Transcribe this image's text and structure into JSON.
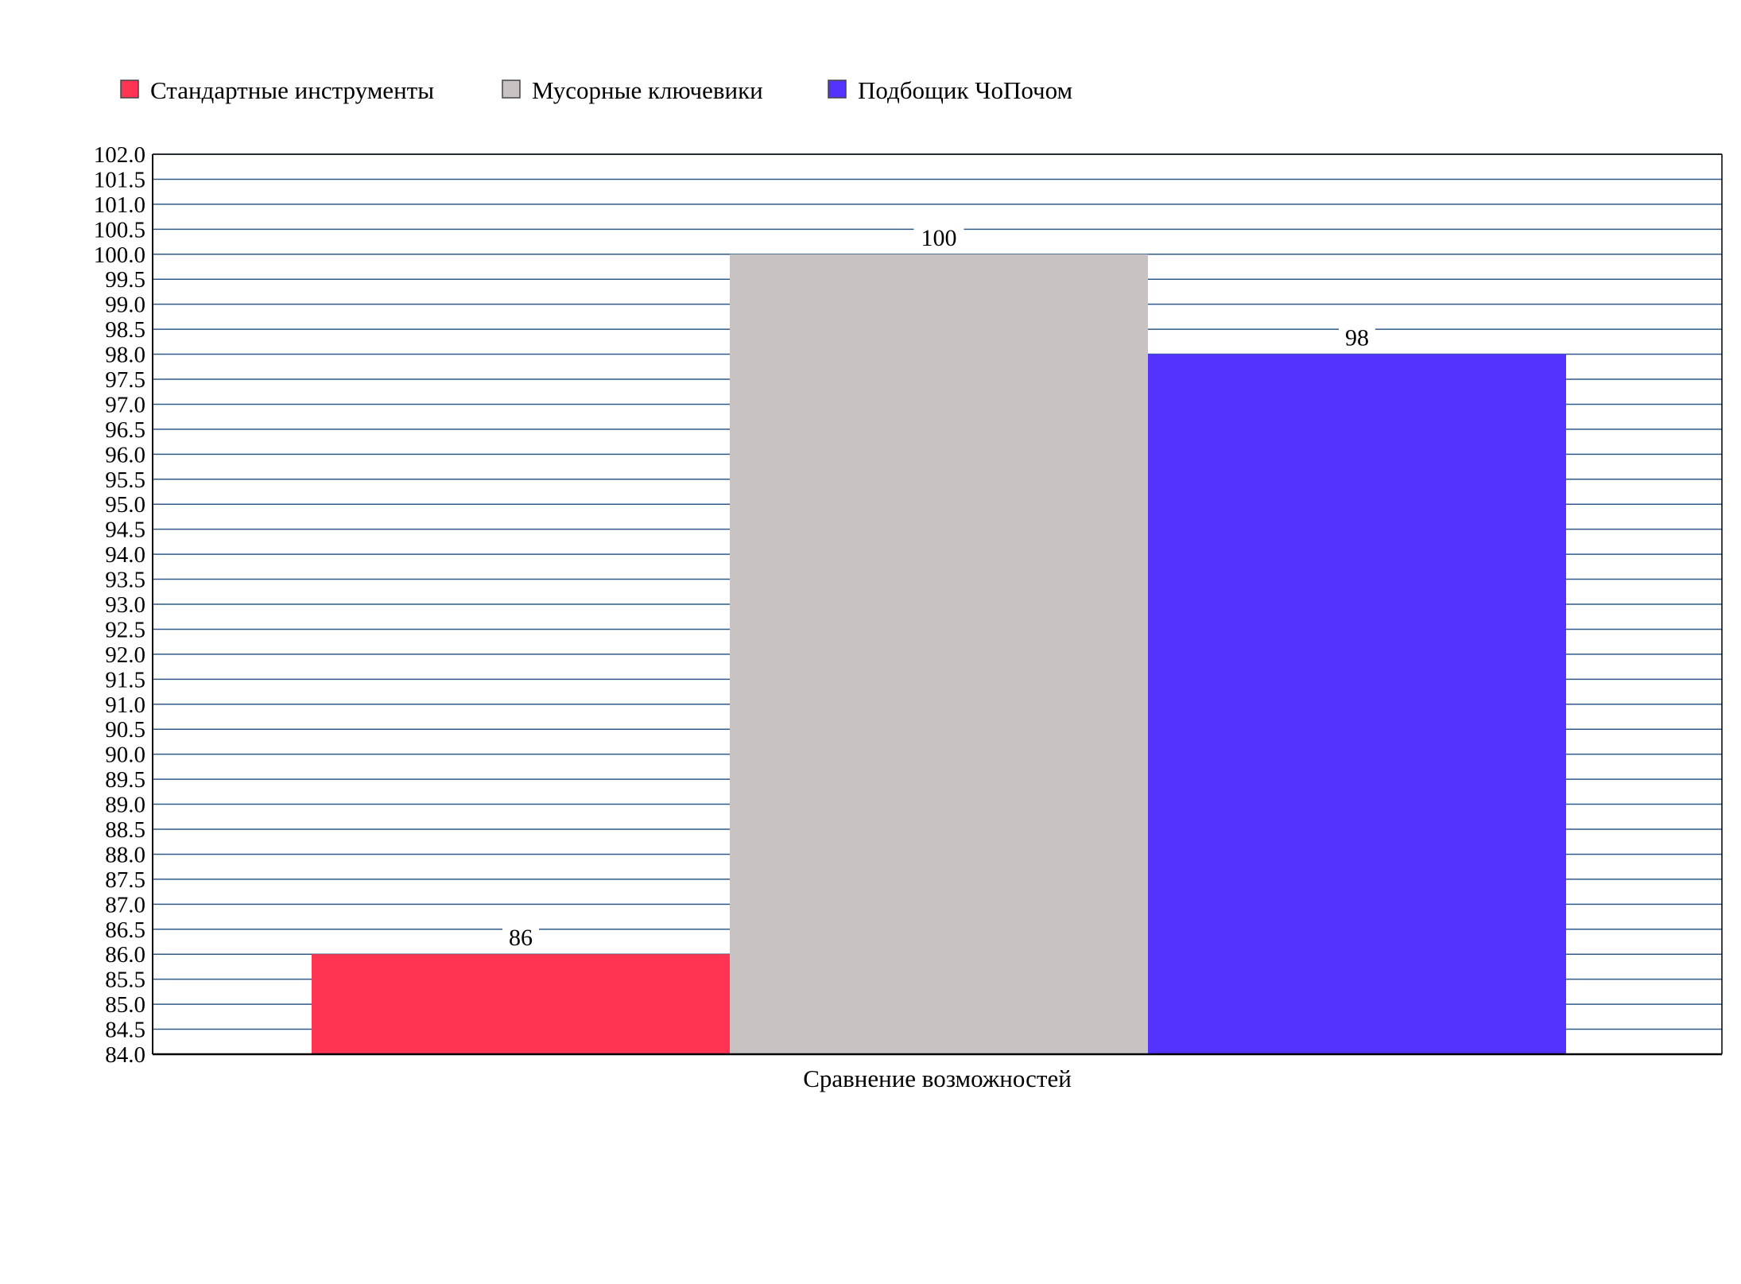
{
  "chart_data": {
    "type": "bar",
    "categories": [
      "Сравнение возможностей"
    ],
    "series": [
      {
        "name": "Стандартные инструменты",
        "values": [
          86
        ],
        "color": "#ff3352"
      },
      {
        "name": "Мусорные ключевики",
        "values": [
          100
        ],
        "color": "#c8c2c2"
      },
      {
        "name": "Подбощик ЧоПочом",
        "values": [
          98
        ],
        "color": "#5533ff"
      }
    ],
    "data_labels": [
      "86",
      "100",
      "98"
    ],
    "title": "",
    "xlabel": "Сравнение возможностей",
    "ylabel": "",
    "ylim": [
      84,
      102
    ],
    "y_tick_step": 0.5,
    "y_tick_labels": [
      "84.0",
      "84.5",
      "85.0",
      "85.5",
      "86.0",
      "86.5",
      "87.0",
      "87.5",
      "88.0",
      "88.5",
      "89.0",
      "89.5",
      "90.0",
      "90.5",
      "91.0",
      "91.5",
      "92.0",
      "92.5",
      "93.0",
      "93.5",
      "94.0",
      "94.5",
      "95.0",
      "95.5",
      "96.0",
      "96.5",
      "97.0",
      "97.5",
      "98.0",
      "98.5",
      "99.0",
      "99.5",
      "100.0",
      "100.5",
      "101.0",
      "101.5",
      "102.0"
    ],
    "grid": true,
    "grid_color": "#2f5a8a",
    "legend_position": "top-left"
  }
}
